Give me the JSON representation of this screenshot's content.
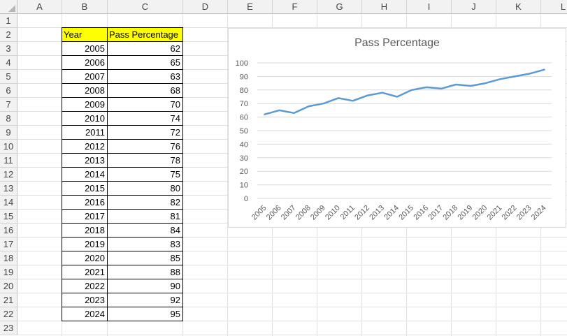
{
  "sheet": {
    "columns": [
      "A",
      "B",
      "C",
      "D",
      "E",
      "F",
      "G",
      "H",
      "I",
      "J",
      "K",
      "L"
    ],
    "rows": [
      "1",
      "2",
      "3",
      "4",
      "5",
      "6",
      "7",
      "8",
      "9",
      "10",
      "11",
      "12",
      "13",
      "14",
      "15",
      "16",
      "17",
      "18",
      "19",
      "20",
      "21",
      "22",
      "23"
    ]
  },
  "table": {
    "headers": [
      "Year",
      "Pass Percentage"
    ],
    "rows": [
      [
        "2005",
        "62"
      ],
      [
        "2006",
        "65"
      ],
      [
        "2007",
        "63"
      ],
      [
        "2008",
        "68"
      ],
      [
        "2009",
        "70"
      ],
      [
        "2010",
        "74"
      ],
      [
        "2011",
        "72"
      ],
      [
        "2012",
        "76"
      ],
      [
        "2013",
        "78"
      ],
      [
        "2014",
        "75"
      ],
      [
        "2015",
        "80"
      ],
      [
        "2016",
        "82"
      ],
      [
        "2017",
        "81"
      ],
      [
        "2018",
        "84"
      ],
      [
        "2019",
        "83"
      ],
      [
        "2020",
        "85"
      ],
      [
        "2021",
        "88"
      ],
      [
        "2022",
        "90"
      ],
      [
        "2023",
        "92"
      ],
      [
        "2024",
        "95"
      ]
    ]
  },
  "colors": {
    "header_fill": "#ffff00",
    "line": "#5b9bd5",
    "gridline": "#d9d9d9",
    "axis_text": "#595959"
  },
  "chart_data": {
    "type": "line",
    "title": "Pass Percentage",
    "categories": [
      "2005",
      "2006",
      "2007",
      "2008",
      "2009",
      "2010",
      "2011",
      "2012",
      "2013",
      "2014",
      "2015",
      "2016",
      "2017",
      "2018",
      "2019",
      "2020",
      "2021",
      "2022",
      "2023",
      "2024"
    ],
    "series": [
      {
        "values": [
          62,
          65,
          63,
          68,
          70,
          74,
          72,
          76,
          78,
          75,
          80,
          82,
          81,
          84,
          83,
          85,
          88,
          90,
          92,
          95
        ]
      }
    ],
    "yticks": [
      "0",
      "10",
      "20",
      "30",
      "40",
      "50",
      "60",
      "70",
      "80",
      "90",
      "100"
    ],
    "ylim": [
      0,
      100
    ],
    "grid": true,
    "legend": "none"
  }
}
